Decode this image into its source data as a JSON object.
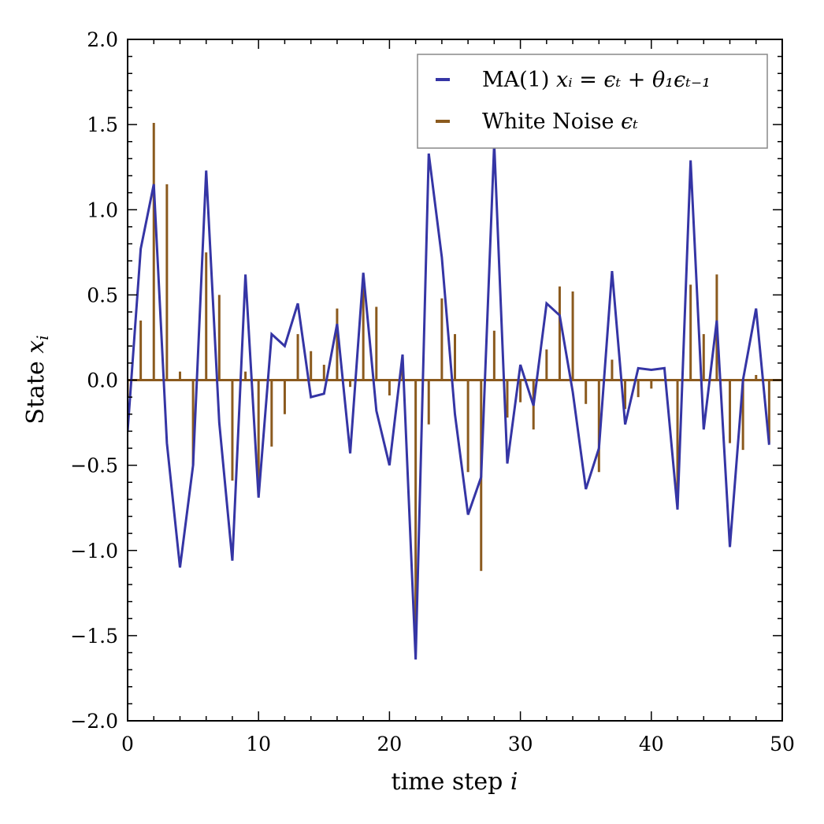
{
  "chart_data": {
    "type": "line",
    "title": "",
    "xlabel": "time step",
    "xlabel_var": "i",
    "ylabel": "State",
    "ylabel_var": "x",
    "ylabel_sub": "i",
    "xlim": [
      0,
      50
    ],
    "ylim": [
      -2.0,
      2.0
    ],
    "xticks": [
      0,
      10,
      20,
      30,
      40,
      50
    ],
    "xtick_labels": [
      "0",
      "10",
      "20",
      "30",
      "40",
      "50"
    ],
    "yticks": [
      2.0,
      1.5,
      1.0,
      0.5,
      0.0,
      -0.5,
      -1.0,
      -1.5,
      -2.0
    ],
    "ytick_labels": [
      "2.0",
      "1.5",
      "1.0",
      "0.5",
      "0.0",
      "−0.5",
      "−1.0",
      "−1.5",
      "−2.0"
    ],
    "legend_position": "top-right",
    "colors": {
      "ma": "#3535a5",
      "noise": "#8b5a1e"
    },
    "series": [
      {
        "name": "MA(1)",
        "legend_math": "xᵢ = ϵₜ + θ₁ϵₜ₋₁",
        "kind": "line",
        "x": [
          0,
          1,
          2,
          3,
          4,
          5,
          6,
          7,
          8,
          9,
          10,
          11,
          12,
          13,
          14,
          15,
          16,
          17,
          18,
          19,
          20,
          21,
          22,
          23,
          24,
          25,
          26,
          27,
          28,
          29,
          30,
          31,
          32,
          33,
          34,
          35,
          36,
          37,
          38,
          39,
          40,
          41,
          42,
          43,
          44,
          45,
          46,
          47,
          48,
          49
        ],
        "values": [
          -0.3,
          0.77,
          1.15,
          -0.37,
          -1.1,
          -0.5,
          1.23,
          -0.25,
          -1.06,
          0.62,
          -0.69,
          0.27,
          0.2,
          0.45,
          -0.1,
          -0.08,
          0.33,
          -0.43,
          0.63,
          -0.18,
          -0.5,
          0.15,
          -1.64,
          1.33,
          0.72,
          -0.2,
          -0.79,
          -0.57,
          1.39,
          -0.49,
          0.09,
          -0.15,
          0.45,
          0.38,
          -0.07,
          -0.64,
          -0.4,
          0.64,
          -0.26,
          0.07,
          0.06,
          0.07,
          -0.76,
          1.29,
          -0.29,
          0.35,
          -0.98,
          0.0,
          0.42,
          -0.38
        ]
      },
      {
        "name": "White Noise",
        "legend_math": "ϵₜ",
        "kind": "stem",
        "x": [
          0,
          1,
          2,
          3,
          4,
          5,
          6,
          7,
          8,
          9,
          10,
          11,
          12,
          13,
          14,
          15,
          16,
          17,
          18,
          19,
          20,
          21,
          22,
          23,
          24,
          25,
          26,
          27,
          28,
          29,
          30,
          31,
          32,
          33,
          34,
          35,
          36,
          37,
          38,
          39,
          40,
          41,
          42,
          43,
          44,
          45,
          46,
          47,
          48,
          49
        ],
        "values": [
          -0.1,
          0.35,
          1.51,
          1.15,
          0.05,
          -0.5,
          0.75,
          0.5,
          -0.59,
          0.05,
          -0.66,
          -0.39,
          -0.2,
          0.27,
          0.17,
          0.09,
          0.42,
          -0.04,
          0.62,
          0.43,
          -0.09,
          0.08,
          -1.58,
          -0.26,
          0.48,
          0.27,
          -0.54,
          -1.12,
          0.29,
          -0.22,
          -0.13,
          -0.29,
          0.18,
          0.55,
          0.52,
          -0.14,
          -0.54,
          0.12,
          -0.17,
          -0.1,
          -0.05,
          0.0,
          -0.74,
          0.56,
          0.27,
          0.62,
          -0.37,
          -0.41,
          0.03,
          -0.37
        ]
      }
    ]
  }
}
